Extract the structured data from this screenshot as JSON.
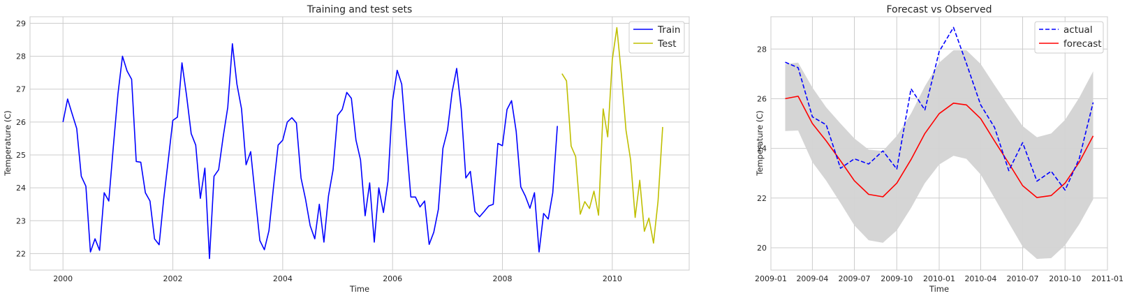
{
  "chart_data": [
    {
      "type": "line",
      "title": "Training and test sets",
      "xlabel": "Time",
      "ylabel": "Temperature (C)",
      "xlim": [
        1999.4,
        2011.4
      ],
      "ylim": [
        21.5,
        29.2
      ],
      "x_ticks": [
        2000,
        2002,
        2004,
        2006,
        2008,
        2010
      ],
      "x_tick_labels": [
        "2000",
        "2002",
        "2004",
        "2006",
        "2008",
        "2010"
      ],
      "y_ticks": [
        22,
        23,
        24,
        25,
        26,
        27,
        28,
        29
      ],
      "y_tick_labels": [
        "22",
        "23",
        "24",
        "25",
        "26",
        "27",
        "28",
        "29"
      ],
      "grid": true,
      "legend_position": "top-right",
      "series": [
        {
          "name": "Train",
          "color": "#0000ff",
          "x_start": 2000,
          "x_step_years": 0.0833333,
          "values": [
            26.0,
            26.7,
            26.25,
            25.8,
            24.35,
            24.05,
            22.05,
            22.45,
            22.1,
            23.85,
            23.6,
            25.25,
            26.85,
            28.0,
            27.55,
            27.3,
            24.8,
            24.78,
            23.85,
            23.6,
            22.45,
            22.27,
            23.65,
            24.85,
            26.05,
            26.15,
            27.8,
            26.8,
            25.65,
            25.3,
            23.68,
            24.6,
            21.85,
            24.35,
            24.55,
            25.55,
            26.45,
            28.38,
            27.15,
            26.4,
            24.7,
            25.1,
            23.75,
            22.4,
            22.12,
            22.7,
            24.05,
            25.3,
            25.45,
            26.0,
            26.13,
            25.97,
            24.3,
            23.65,
            22.85,
            22.45,
            23.5,
            22.35,
            23.75,
            24.55,
            26.2,
            26.38,
            26.9,
            26.72,
            25.45,
            24.85,
            23.15,
            24.15,
            22.35,
            24.0,
            23.25,
            24.2,
            26.65,
            27.57,
            27.15,
            25.4,
            23.72,
            23.72,
            23.42,
            23.6,
            22.28,
            22.65,
            23.35,
            25.2,
            25.75,
            26.9,
            27.63,
            26.4,
            24.3,
            24.5,
            23.28,
            23.12,
            23.28,
            23.45,
            23.5,
            25.35,
            25.28,
            26.38,
            26.65,
            25.72,
            24.03,
            23.75,
            23.38,
            23.85,
            22.05,
            23.22,
            23.05,
            23.85,
            25.88
          ]
        },
        {
          "name": "Test",
          "color": "#bfbf00",
          "x_start": 2009.0833,
          "x_step_years": 0.0833333,
          "values": [
            27.47,
            27.25,
            25.27,
            24.95,
            23.2,
            23.58,
            23.37,
            23.9,
            23.17,
            26.4,
            25.55,
            27.9,
            28.87,
            27.42,
            25.75,
            24.85,
            23.1,
            24.23,
            22.68,
            23.08,
            22.32,
            23.6,
            25.85
          ]
        }
      ]
    },
    {
      "type": "line",
      "title": "Forecast vs Observed",
      "xlabel": "Time",
      "ylabel": "Temperature (C)",
      "xlim": [
        "2009-01-01",
        "2011-01-01"
      ],
      "ylim": [
        19.1,
        29.3
      ],
      "x_ticks": [
        "2009-01-01",
        "2009-04-01",
        "2009-07-01",
        "2009-10-01",
        "2010-01-01",
        "2010-04-01",
        "2010-07-01",
        "2010-10-01",
        "2011-01-01"
      ],
      "x_tick_labels": [
        "2009-01",
        "2009-04",
        "2009-07",
        "2009-10",
        "2010-01",
        "2010-04",
        "2010-07",
        "2010-10",
        "2011-01"
      ],
      "y_ticks": [
        20,
        22,
        24,
        26,
        28
      ],
      "y_tick_labels": [
        "20",
        "22",
        "24",
        "26",
        "28"
      ],
      "grid": true,
      "legend_position": "top-right",
      "dates": [
        "2009-02-01",
        "2009-03-01",
        "2009-04-01",
        "2009-05-01",
        "2009-06-01",
        "2009-07-01",
        "2009-08-01",
        "2009-09-01",
        "2009-10-01",
        "2009-11-01",
        "2009-12-01",
        "2010-01-01",
        "2010-02-01",
        "2010-03-01",
        "2010-04-01",
        "2010-05-01",
        "2010-06-01",
        "2010-07-01",
        "2010-08-01",
        "2010-09-01",
        "2010-10-01",
        "2010-11-01",
        "2010-12-01"
      ],
      "series": [
        {
          "name": "actual",
          "color": "#0000ff",
          "style": "dashed",
          "values": [
            27.47,
            27.25,
            25.27,
            24.95,
            23.2,
            23.58,
            23.37,
            23.9,
            23.17,
            26.4,
            25.55,
            27.9,
            28.87,
            27.42,
            25.75,
            24.85,
            23.1,
            24.23,
            22.68,
            23.08,
            22.32,
            23.6,
            25.85
          ]
        },
        {
          "name": "forecast",
          "color": "#ff0000",
          "style": "solid",
          "values": [
            26.0,
            26.1,
            25.0,
            24.3,
            23.5,
            22.7,
            22.15,
            22.05,
            22.6,
            23.55,
            24.6,
            25.4,
            25.82,
            25.75,
            25.2,
            24.3,
            23.4,
            22.5,
            22.02,
            22.1,
            22.6,
            23.45,
            24.5
          ]
        }
      ],
      "band": {
        "color": "#d3d3d3",
        "lower": [
          24.7,
          24.72,
          23.45,
          22.7,
          21.8,
          20.9,
          20.3,
          20.2,
          20.7,
          21.6,
          22.6,
          23.35,
          23.7,
          23.58,
          22.95,
          22.0,
          21.0,
          20.05,
          19.55,
          19.58,
          20.1,
          20.95,
          21.95
        ],
        "upper": [
          27.4,
          27.45,
          26.45,
          25.65,
          25.0,
          24.4,
          23.95,
          23.9,
          24.5,
          25.4,
          26.5,
          27.45,
          27.95,
          27.95,
          27.4,
          26.55,
          25.7,
          24.9,
          24.45,
          24.6,
          25.15,
          26.05,
          27.1
        ]
      }
    }
  ]
}
